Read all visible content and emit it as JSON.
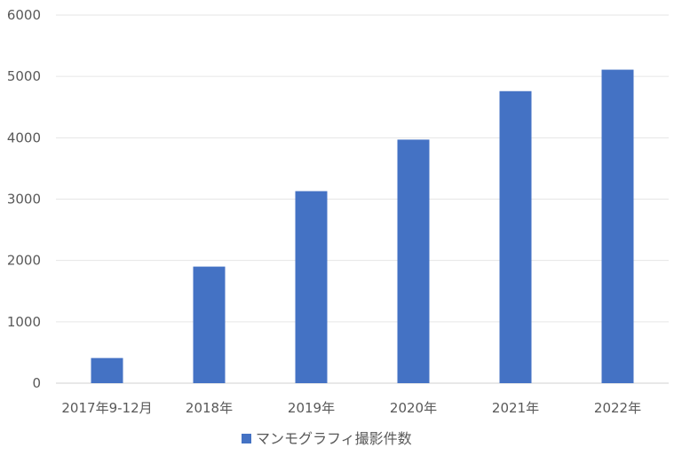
{
  "chart_data": {
    "type": "bar",
    "categories": [
      "2017年9-12月",
      "2018年",
      "2019年",
      "2020年",
      "2021年",
      "2022年"
    ],
    "series": [
      {
        "name": "マンモグラフィ撮影件数",
        "values": [
          410,
          1900,
          3130,
          3970,
          4760,
          5110
        ],
        "color": "#4472C4"
      }
    ],
    "title": "",
    "xlabel": "",
    "ylabel": "",
    "ylim": [
      0,
      6000
    ],
    "yticks": [
      "0",
      "1000",
      "2000",
      "3000",
      "4000",
      "5000",
      "6000"
    ],
    "grid": true,
    "legend_position": "bottom"
  }
}
